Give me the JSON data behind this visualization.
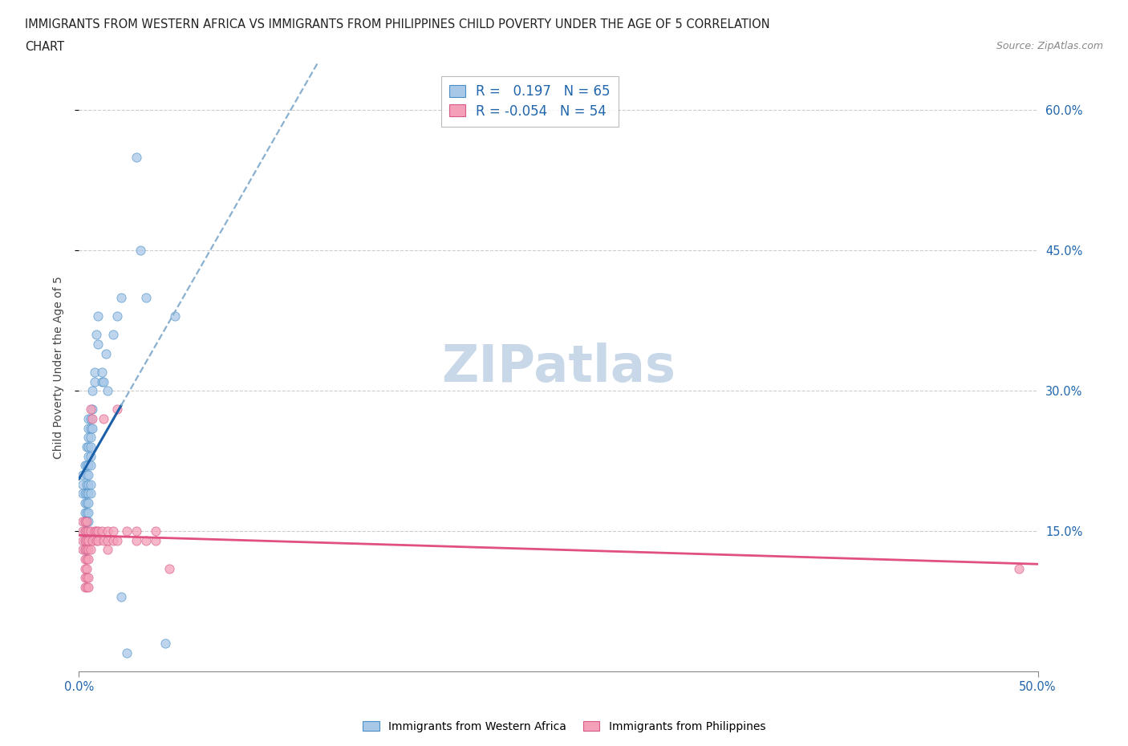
{
  "title_line1": "IMMIGRANTS FROM WESTERN AFRICA VS IMMIGRANTS FROM PHILIPPINES CHILD POVERTY UNDER THE AGE OF 5 CORRELATION",
  "title_line2": "CHART",
  "source_text": "Source: ZipAtlas.com",
  "ylabel": "Child Poverty Under the Age of 5",
  "xlim": [
    0.0,
    0.5
  ],
  "ylim": [
    0.0,
    0.65
  ],
  "xtick_positions": [
    0.0,
    0.5
  ],
  "xtick_labels": [
    "0.0%",
    "50.0%"
  ],
  "ytick_positions": [
    0.15,
    0.3,
    0.45,
    0.6
  ],
  "ytick_labels": [
    "15.0%",
    "30.0%",
    "45.0%",
    "60.0%"
  ],
  "grid_yticks": [
    0.15,
    0.3,
    0.45,
    0.6
  ],
  "R_blue": 0.197,
  "N_blue": 65,
  "R_pink": -0.054,
  "N_pink": 54,
  "blue_fill": "#a8c8e8",
  "blue_edge": "#4a90c8",
  "pink_fill": "#f4a0b8",
  "pink_edge": "#d85888",
  "blue_line_color": "#1a5fa8",
  "blue_dash_color": "#8ab0d0",
  "pink_line_color": "#e05080",
  "blue_scatter": [
    [
      0.002,
      0.21
    ],
    [
      0.002,
      0.2
    ],
    [
      0.002,
      0.19
    ],
    [
      0.003,
      0.22
    ],
    [
      0.003,
      0.19
    ],
    [
      0.003,
      0.18
    ],
    [
      0.003,
      0.17
    ],
    [
      0.003,
      0.16
    ],
    [
      0.003,
      0.15
    ],
    [
      0.003,
      0.14
    ],
    [
      0.003,
      0.13
    ],
    [
      0.004,
      0.24
    ],
    [
      0.004,
      0.22
    ],
    [
      0.004,
      0.21
    ],
    [
      0.004,
      0.2
    ],
    [
      0.004,
      0.19
    ],
    [
      0.004,
      0.18
    ],
    [
      0.004,
      0.17
    ],
    [
      0.004,
      0.16
    ],
    [
      0.004,
      0.15
    ],
    [
      0.004,
      0.14
    ],
    [
      0.004,
      0.13
    ],
    [
      0.005,
      0.27
    ],
    [
      0.005,
      0.26
    ],
    [
      0.005,
      0.25
    ],
    [
      0.005,
      0.24
    ],
    [
      0.005,
      0.23
    ],
    [
      0.005,
      0.22
    ],
    [
      0.005,
      0.21
    ],
    [
      0.005,
      0.2
    ],
    [
      0.005,
      0.19
    ],
    [
      0.005,
      0.18
    ],
    [
      0.005,
      0.17
    ],
    [
      0.005,
      0.16
    ],
    [
      0.006,
      0.27
    ],
    [
      0.006,
      0.26
    ],
    [
      0.006,
      0.25
    ],
    [
      0.006,
      0.24
    ],
    [
      0.006,
      0.23
    ],
    [
      0.006,
      0.22
    ],
    [
      0.006,
      0.2
    ],
    [
      0.006,
      0.19
    ],
    [
      0.007,
      0.3
    ],
    [
      0.007,
      0.28
    ],
    [
      0.007,
      0.26
    ],
    [
      0.008,
      0.32
    ],
    [
      0.008,
      0.31
    ],
    [
      0.009,
      0.36
    ],
    [
      0.01,
      0.38
    ],
    [
      0.01,
      0.35
    ],
    [
      0.012,
      0.32
    ],
    [
      0.012,
      0.31
    ],
    [
      0.013,
      0.31
    ],
    [
      0.014,
      0.34
    ],
    [
      0.015,
      0.3
    ],
    [
      0.018,
      0.36
    ],
    [
      0.02,
      0.38
    ],
    [
      0.022,
      0.4
    ],
    [
      0.03,
      0.55
    ],
    [
      0.032,
      0.45
    ],
    [
      0.035,
      0.4
    ],
    [
      0.05,
      0.38
    ],
    [
      0.025,
      0.02
    ],
    [
      0.022,
      0.08
    ],
    [
      0.045,
      0.03
    ]
  ],
  "pink_scatter": [
    [
      0.002,
      0.16
    ],
    [
      0.002,
      0.15
    ],
    [
      0.002,
      0.14
    ],
    [
      0.002,
      0.13
    ],
    [
      0.003,
      0.16
    ],
    [
      0.003,
      0.15
    ],
    [
      0.003,
      0.14
    ],
    [
      0.003,
      0.13
    ],
    [
      0.003,
      0.12
    ],
    [
      0.003,
      0.11
    ],
    [
      0.003,
      0.1
    ],
    [
      0.003,
      0.09
    ],
    [
      0.004,
      0.16
    ],
    [
      0.004,
      0.15
    ],
    [
      0.004,
      0.14
    ],
    [
      0.004,
      0.13
    ],
    [
      0.004,
      0.12
    ],
    [
      0.004,
      0.11
    ],
    [
      0.004,
      0.1
    ],
    [
      0.004,
      0.09
    ],
    [
      0.005,
      0.15
    ],
    [
      0.005,
      0.14
    ],
    [
      0.005,
      0.13
    ],
    [
      0.005,
      0.12
    ],
    [
      0.005,
      0.1
    ],
    [
      0.005,
      0.09
    ],
    [
      0.006,
      0.28
    ],
    [
      0.006,
      0.15
    ],
    [
      0.006,
      0.13
    ],
    [
      0.007,
      0.27
    ],
    [
      0.007,
      0.14
    ],
    [
      0.008,
      0.15
    ],
    [
      0.009,
      0.15
    ],
    [
      0.009,
      0.14
    ],
    [
      0.01,
      0.15
    ],
    [
      0.01,
      0.14
    ],
    [
      0.012,
      0.15
    ],
    [
      0.013,
      0.27
    ],
    [
      0.013,
      0.14
    ],
    [
      0.015,
      0.15
    ],
    [
      0.015,
      0.14
    ],
    [
      0.015,
      0.13
    ],
    [
      0.018,
      0.15
    ],
    [
      0.018,
      0.14
    ],
    [
      0.02,
      0.28
    ],
    [
      0.02,
      0.14
    ],
    [
      0.025,
      0.15
    ],
    [
      0.03,
      0.15
    ],
    [
      0.03,
      0.14
    ],
    [
      0.035,
      0.14
    ],
    [
      0.04,
      0.15
    ],
    [
      0.04,
      0.14
    ],
    [
      0.047,
      0.11
    ],
    [
      0.49,
      0.11
    ]
  ],
  "watermark_text": "ZIPatlas",
  "watermark_color": "#c8d8e8",
  "bg_color": "#ffffff",
  "legend_label_blue": "R =   0.197   N = 65",
  "legend_label_pink": "R = -0.054   N = 54",
  "bottom_legend_blue": "Immigrants from Western Africa",
  "bottom_legend_pink": "Immigrants from Philippines"
}
